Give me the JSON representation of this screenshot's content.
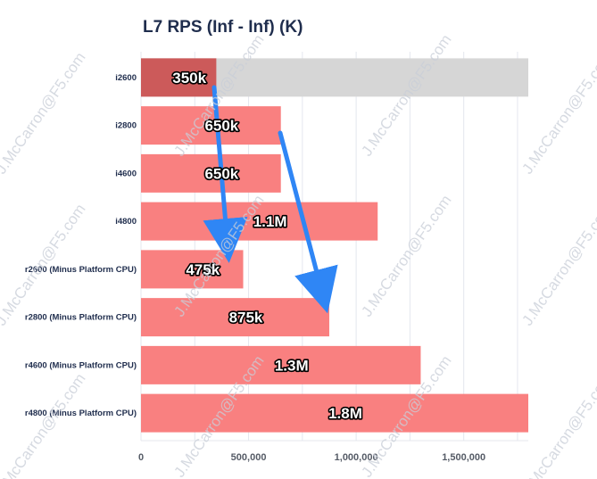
{
  "chart_data": {
    "type": "bar",
    "orientation": "horizontal",
    "title": "L7 RPS (Inf - Inf) (K)",
    "categories": [
      "i2600",
      "i2800",
      "i4600",
      "i4800",
      "r2600 (Minus Platform CPU)",
      "r2800 (Minus Platform CPU)",
      "r4600 (Minus Platform CPU)",
      "r4800 (Minus Platform CPU)"
    ],
    "values": [
      350000,
      650000,
      650000,
      1100000,
      475000,
      875000,
      1300000,
      1800000
    ],
    "data_labels": [
      "350k",
      "650k",
      "650k",
      "1.1M",
      "475k",
      "875k",
      "1.3M",
      "1.8M"
    ],
    "highlighted_index": 0,
    "xlim": [
      0,
      1800000
    ],
    "x_ticks": [
      0,
      500000,
      1000000,
      1500000
    ],
    "x_tick_labels": [
      "0",
      "500,000",
      "1,000,000",
      "1,500,000"
    ],
    "xlabel": "",
    "ylabel": "",
    "grid": true,
    "annotations": [
      {
        "type": "arrow",
        "from_category": "i2600",
        "to_category": "r2600 (Minus Platform CPU)",
        "note": "blue arrow"
      },
      {
        "type": "arrow",
        "from_category": "i2800",
        "to_category": "r2800 (Minus Platform CPU)",
        "note": "blue arrow"
      }
    ]
  },
  "colors": {
    "bar": "#f98080",
    "bar_highlight": "#cc5a5a",
    "bar_background": "#d6d6d6",
    "arrow": "#2f86f5",
    "grid": "#e4e7ee",
    "title": "#1f2d4d"
  },
  "watermark": "J.McCarron@F5.com"
}
